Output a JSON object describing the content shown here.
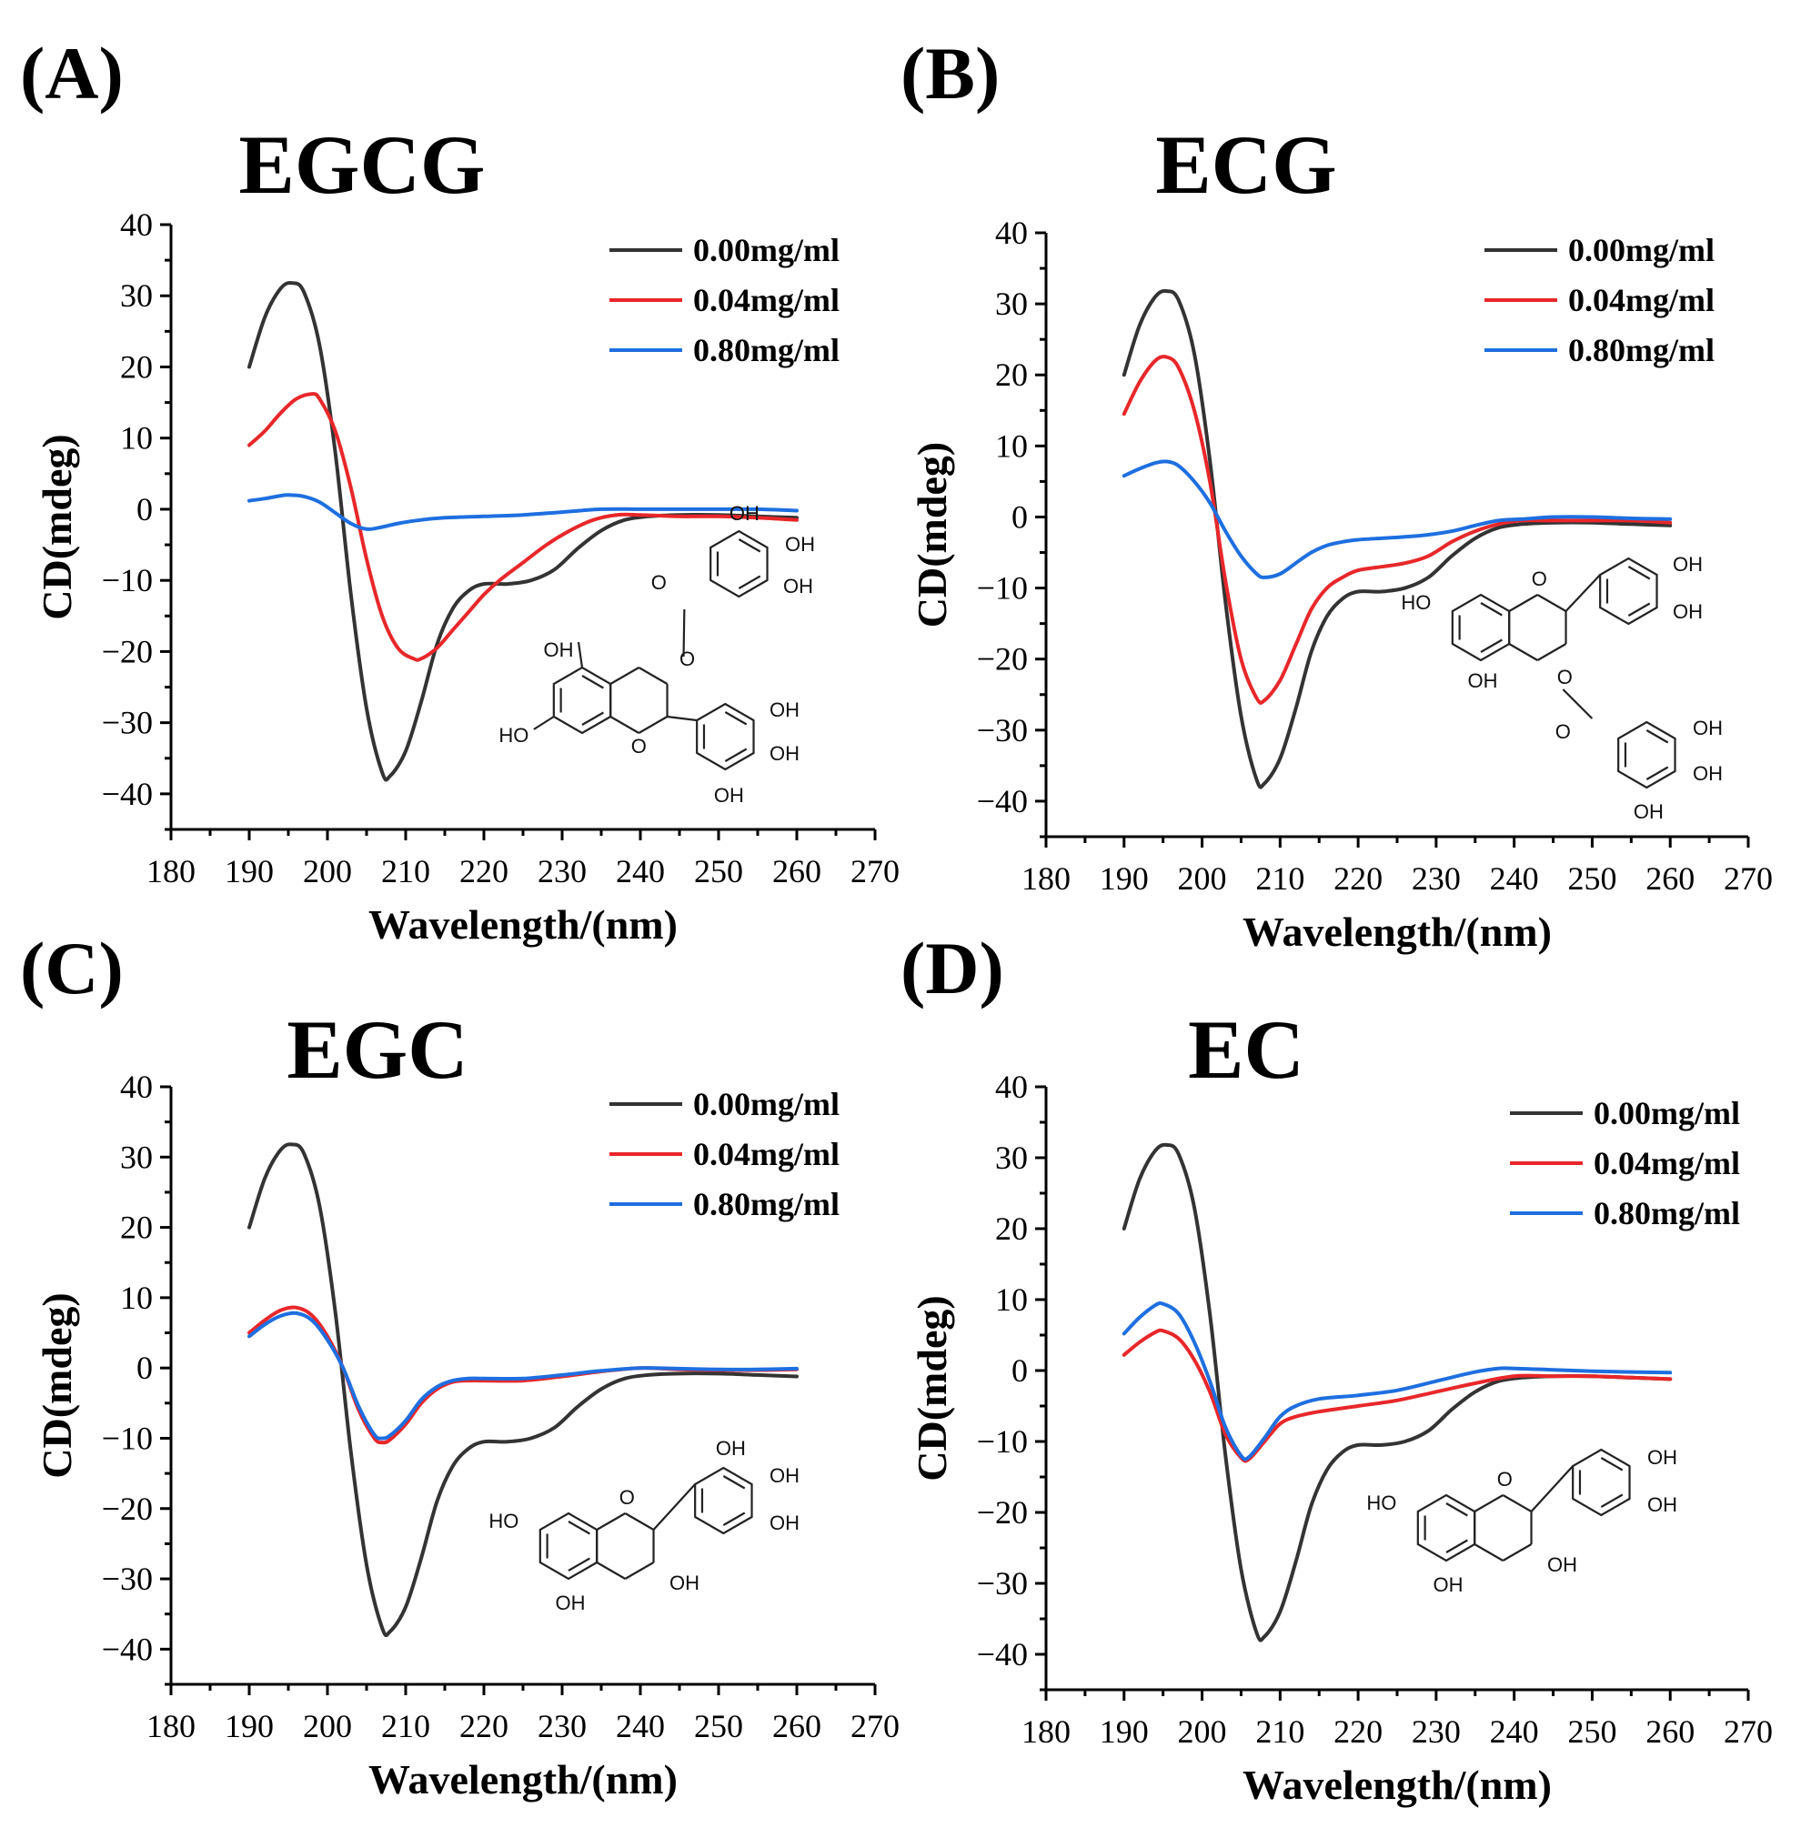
{
  "chart_data": [
    {
      "type": "line",
      "panel": "(A)",
      "title": "EGCG",
      "xlabel": "Wavelength/(nm)",
      "ylabel": "CD(mdeg)",
      "xlim": [
        180,
        270
      ],
      "ylim": [
        -45,
        40
      ],
      "x_ticks": [
        180,
        190,
        200,
        210,
        220,
        230,
        240,
        250,
        260,
        270
      ],
      "y_ticks": [
        -40,
        -30,
        -20,
        -10,
        0,
        10,
        20,
        30,
        40
      ],
      "legend_position": "top-right",
      "molecule": "EGCG",
      "series": [
        {
          "name": "0.00mg/ml",
          "color": "#333333",
          "x": [
            190,
            192,
            194,
            195.5,
            197,
            199,
            201,
            203,
            205,
            207,
            208,
            210,
            212,
            214,
            216,
            218,
            220,
            223,
            226,
            229,
            232,
            235,
            238,
            241,
            245,
            250,
            255,
            260
          ],
          "y": [
            20,
            27,
            31,
            31.8,
            30.5,
            23,
            8,
            -12,
            -28,
            -37,
            -37.5,
            -34,
            -27,
            -19,
            -14,
            -11.5,
            -10.5,
            -10.5,
            -10,
            -8.5,
            -5.5,
            -3,
            -1.5,
            -1,
            -0.8,
            -0.8,
            -1,
            -1.2
          ]
        },
        {
          "name": "0.04mg/ml",
          "color": "#e8272a",
          "x": [
            190,
            192,
            194,
            196,
            198,
            199,
            201,
            203,
            205,
            207,
            209,
            211,
            212,
            214,
            216,
            218,
            220,
            222,
            225,
            228,
            231,
            234,
            237,
            240,
            245,
            250,
            255,
            260
          ],
          "y": [
            9,
            11,
            13.5,
            15.5,
            16.2,
            15.5,
            11,
            3,
            -7,
            -15,
            -19.5,
            -21,
            -21,
            -19.5,
            -17,
            -14.5,
            -12,
            -10,
            -7.5,
            -5,
            -3,
            -1.5,
            -0.8,
            -0.8,
            -1,
            -1,
            -1.2,
            -1.5
          ]
        },
        {
          "name": "0.80mg/ml",
          "color": "#1e6fe0",
          "x": [
            190,
            192,
            194,
            195,
            197,
            199,
            201,
            203,
            205,
            207,
            209,
            212,
            215,
            220,
            225,
            230,
            235,
            240,
            245,
            250,
            255,
            260
          ],
          "y": [
            1.2,
            1.5,
            1.9,
            2,
            1.8,
            1,
            -0.5,
            -2,
            -2.8,
            -2.5,
            -2,
            -1.5,
            -1.2,
            -1,
            -0.8,
            -0.4,
            0,
            0,
            0,
            0,
            0,
            -0.2
          ]
        }
      ]
    },
    {
      "type": "line",
      "panel": "(B)",
      "title": "ECG",
      "xlabel": "Wavelength/(nm)",
      "ylabel": "CD(mdeg)",
      "xlim": [
        180,
        270
      ],
      "ylim": [
        -45,
        40
      ],
      "x_ticks": [
        180,
        190,
        200,
        210,
        220,
        230,
        240,
        250,
        260,
        270
      ],
      "y_ticks": [
        -40,
        -30,
        -20,
        -10,
        0,
        10,
        20,
        30,
        40
      ],
      "legend_position": "top-right",
      "molecule": "ECG",
      "series": [
        {
          "name": "0.00mg/ml",
          "color": "#333333",
          "x": [
            190,
            192,
            194,
            195.5,
            197,
            199,
            201,
            203,
            205,
            207,
            208,
            210,
            212,
            214,
            216,
            218,
            220,
            223,
            226,
            229,
            232,
            235,
            238,
            241,
            245,
            250,
            255,
            260
          ],
          "y": [
            20,
            27,
            31,
            31.8,
            30.5,
            23,
            8,
            -12,
            -28,
            -37,
            -37.5,
            -34,
            -27,
            -19,
            -14,
            -11.5,
            -10.5,
            -10.5,
            -10,
            -8.5,
            -5.5,
            -3,
            -1.5,
            -1,
            -0.8,
            -0.8,
            -1,
            -1.2
          ]
        },
        {
          "name": "0.04mg/ml",
          "color": "#e8272a",
          "x": [
            190,
            192,
            194,
            195.5,
            197,
            199,
            201,
            203,
            205,
            207,
            208,
            210,
            212,
            214,
            216,
            218,
            220,
            223,
            226,
            229,
            232,
            235,
            238,
            241,
            245,
            250,
            255,
            260
          ],
          "y": [
            14.5,
            19,
            22,
            22.5,
            21,
            15,
            5,
            -9,
            -20,
            -25.5,
            -25.8,
            -23,
            -18,
            -13,
            -10,
            -8.5,
            -7.5,
            -7,
            -6.5,
            -5.5,
            -3.5,
            -2,
            -1,
            -0.5,
            -0.5,
            -0.5,
            -0.5,
            -0.8
          ]
        },
        {
          "name": "0.80mg/ml",
          "color": "#1e6fe0",
          "x": [
            190,
            192,
            194,
            195.5,
            197,
            199,
            201,
            203,
            205,
            207,
            208,
            210,
            212,
            214,
            216,
            218,
            220,
            223,
            226,
            229,
            232,
            235,
            238,
            241,
            245,
            250,
            255,
            260
          ],
          "y": [
            5.8,
            6.8,
            7.6,
            7.8,
            7.2,
            5,
            2,
            -2,
            -5.5,
            -8,
            -8.5,
            -8,
            -6.5,
            -5,
            -4,
            -3.5,
            -3.2,
            -3,
            -2.8,
            -2.5,
            -2,
            -1.2,
            -0.5,
            -0.3,
            0,
            0,
            -0.2,
            -0.3
          ]
        }
      ]
    },
    {
      "type": "line",
      "panel": "(C)",
      "title": "EGC",
      "xlabel": "Wavelength/(nm)",
      "ylabel": "CD(mdeg)",
      "xlim": [
        180,
        270
      ],
      "ylim": [
        -45,
        40
      ],
      "x_ticks": [
        180,
        190,
        200,
        210,
        220,
        230,
        240,
        250,
        260,
        270
      ],
      "y_ticks": [
        -40,
        -30,
        -20,
        -10,
        0,
        10,
        20,
        30,
        40
      ],
      "legend_position": "top-right",
      "molecule": "EGC",
      "series": [
        {
          "name": "0.00mg/ml",
          "color": "#333333",
          "x": [
            190,
            192,
            194,
            195.5,
            197,
            199,
            201,
            203,
            205,
            207,
            208,
            210,
            212,
            214,
            216,
            218,
            220,
            223,
            226,
            229,
            232,
            235,
            238,
            241,
            245,
            250,
            255,
            260
          ],
          "y": [
            20,
            27,
            31,
            31.8,
            30.5,
            23,
            8,
            -12,
            -28,
            -37,
            -37.5,
            -34,
            -27,
            -19,
            -14,
            -11.5,
            -10.5,
            -10.5,
            -10,
            -8.5,
            -5.5,
            -3,
            -1.5,
            -1,
            -0.8,
            -0.8,
            -1,
            -1.2
          ]
        },
        {
          "name": "0.04mg/ml",
          "color": "#e8272a",
          "x": [
            190,
            192,
            194,
            196,
            198,
            200,
            202,
            204,
            206,
            207,
            208,
            210,
            212,
            214,
            216,
            218,
            220,
            225,
            230,
            235,
            240,
            245,
            250,
            255,
            260
          ],
          "y": [
            5,
            6.8,
            8.2,
            8.6,
            7.5,
            4.5,
            0,
            -6,
            -10,
            -10.6,
            -10.2,
            -8,
            -5,
            -3,
            -2,
            -1.8,
            -1.8,
            -1.8,
            -1.2,
            -0.5,
            0,
            -0.2,
            -0.3,
            -0.3,
            -0.2
          ]
        },
        {
          "name": "0.80mg/ml",
          "color": "#1e6fe0",
          "x": [
            190,
            192,
            194,
            196,
            198,
            200,
            202,
            204,
            206,
            207,
            208,
            210,
            212,
            214,
            216,
            218,
            220,
            225,
            230,
            235,
            240,
            245,
            250,
            255,
            260
          ],
          "y": [
            4.5,
            6.2,
            7.4,
            7.8,
            6.8,
            4,
            0,
            -5.5,
            -9.5,
            -10,
            -9.6,
            -7.5,
            -4.5,
            -2.7,
            -1.8,
            -1.5,
            -1.5,
            -1.5,
            -1,
            -0.4,
            0,
            -0.1,
            -0.2,
            -0.2,
            -0.1
          ]
        }
      ]
    },
    {
      "type": "line",
      "panel": "(D)",
      "title": "EC",
      "xlabel": "Wavelength/(nm)",
      "ylabel": "CD(mdeg)",
      "xlim": [
        180,
        270
      ],
      "ylim": [
        -45,
        40
      ],
      "x_ticks": [
        180,
        190,
        200,
        210,
        220,
        230,
        240,
        250,
        260,
        270
      ],
      "y_ticks": [
        -40,
        -30,
        -20,
        -10,
        0,
        10,
        20,
        30,
        40
      ],
      "legend_position": "top-right",
      "molecule": "EC",
      "series": [
        {
          "name": "0.00mg/ml",
          "color": "#333333",
          "x": [
            190,
            192,
            194,
            195.5,
            197,
            199,
            201,
            203,
            205,
            207,
            208,
            210,
            212,
            214,
            216,
            218,
            220,
            223,
            226,
            229,
            232,
            235,
            238,
            241,
            245,
            250,
            255,
            260
          ],
          "y": [
            20,
            27,
            31,
            31.8,
            30.5,
            23,
            8,
            -12,
            -28,
            -37,
            -37.5,
            -34,
            -27,
            -19,
            -14,
            -11.5,
            -10.5,
            -10.5,
            -10,
            -8.5,
            -5.5,
            -3,
            -1.5,
            -1,
            -0.8,
            -0.8,
            -1,
            -1.2
          ]
        },
        {
          "name": "0.04mg/ml",
          "color": "#e8272a",
          "x": [
            190,
            192,
            194,
            195,
            197,
            199,
            201,
            203,
            205,
            206,
            208,
            210,
            212,
            215,
            220,
            225,
            230,
            235,
            240,
            245,
            250,
            255,
            260
          ],
          "y": [
            2.2,
            4,
            5.4,
            5.6,
            4.5,
            1.5,
            -3,
            -9,
            -12.3,
            -12.5,
            -10,
            -7.5,
            -6.5,
            -5.8,
            -5,
            -4.2,
            -3,
            -1.8,
            -0.8,
            -0.8,
            -0.8,
            -1,
            -1.2
          ]
        },
        {
          "name": "0.80mg/ml",
          "color": "#1e6fe0",
          "x": [
            190,
            192,
            194,
            195,
            197,
            199,
            201,
            203,
            205,
            206,
            208,
            210,
            212,
            215,
            220,
            225,
            230,
            235,
            238,
            240,
            245,
            250,
            255,
            260
          ],
          "y": [
            5.2,
            7.5,
            9.2,
            9.4,
            8,
            4,
            -1.5,
            -8,
            -12,
            -12.2,
            -9.5,
            -6.5,
            -5,
            -4,
            -3.5,
            -2.8,
            -1.5,
            -0.2,
            0.3,
            0.3,
            0.1,
            -0.1,
            -0.2,
            -0.3
          ]
        }
      ]
    }
  ]
}
